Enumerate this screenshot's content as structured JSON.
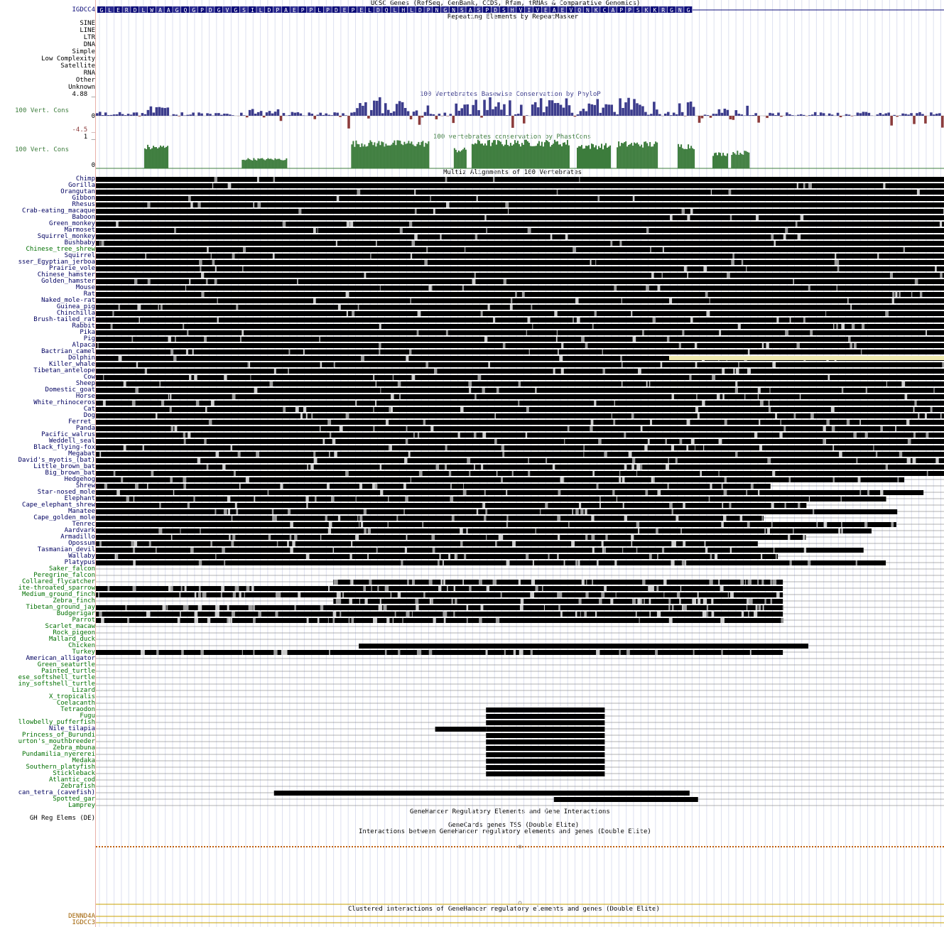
{
  "colors": {
    "gene": "#0c0c78",
    "gene_highlight": "#c000c0",
    "phylop_pos": "#3c3c8c",
    "phylop_neg": "#8c3c3c",
    "phylop_max": "#c000c0",
    "phastcons": "#3c7c3c",
    "align_black": "#000000",
    "align_gray": "#999999",
    "align_light": "#cccccc",
    "insertion_yellow": "#f0eab0",
    "mammal_label": "#000060",
    "bird_label": "#007000",
    "genehancer": "#c06010",
    "genehancer_line": "#c8a000",
    "gene_label": "#a06000"
  },
  "tracks": {
    "ucsc_genes": {
      "title": "UCSC Genes (RefSeq, GenBank, CCDS, Rfam, tRNAs & Comparative Genomics)",
      "label": "IGDCC4",
      "aa_sequence": [
        "G",
        "L",
        "E",
        "R",
        "D",
        "L",
        "W",
        "A",
        "A",
        "G",
        "Q",
        "G",
        "P",
        "D",
        "G",
        "V",
        "G",
        "S",
        "I",
        "L",
        "D",
        "P",
        "A",
        "E",
        "P",
        "P",
        "L",
        "P",
        "D",
        "E",
        "P",
        "E",
        "L",
        "D",
        "Q",
        "L",
        "H",
        "L",
        "D",
        "P",
        "N",
        "G",
        "N",
        "S",
        "A",
        "S",
        "P",
        "D",
        "S",
        "H",
        "V",
        "I",
        "V",
        "E",
        "A",
        "E",
        "V",
        "Q",
        "N",
        "K",
        "C",
        "A",
        "P",
        "P",
        "S",
        "K",
        "K",
        "R",
        "G",
        "N",
        "G"
      ]
    },
    "repeatmasker": {
      "title": "Repeating Elements by RepeatMasker",
      "classes": [
        "SINE",
        "LINE",
        "LTR",
        "DNA",
        "Simple",
        "Low Complexity",
        "Satellite",
        "RNA",
        "Other",
        "Unknown"
      ]
    },
    "phylop": {
      "title": "100 Vertebrates Basewise Conservation by PhyloP",
      "label": "100 Vert. Cons",
      "ymax_label": "4.88 _",
      "zero_label": "0",
      "ymin_label": "-4.5 _",
      "ymax": 4.88,
      "ymin": -4.5
    },
    "phastcons": {
      "title": "100 vertebrates conservation by PhastCons",
      "label": "100 Vert. Cons",
      "ymax_label": "1 _",
      "zero_label": "0",
      "blocks": [
        [
          0.057,
          0.084,
          0.8
        ],
        [
          0.172,
          0.224,
          0.35
        ],
        [
          0.301,
          0.393,
          0.95
        ],
        [
          0.422,
          0.437,
          0.7
        ],
        [
          0.443,
          0.557,
          0.97
        ],
        [
          0.567,
          0.607,
          0.85
        ],
        [
          0.614,
          0.662,
          0.92
        ],
        [
          0.686,
          0.705,
          0.85
        ],
        [
          0.727,
          0.744,
          0.55
        ],
        [
          0.749,
          0.77,
          0.6
        ]
      ]
    },
    "multiz": {
      "title": "Multiz Alignments of 100 Vertebrates",
      "species": [
        {
          "name": "Chimp",
          "group": "m"
        },
        {
          "name": "Gorilla",
          "group": "m"
        },
        {
          "name": "Orangutan",
          "group": "m"
        },
        {
          "name": "Gibbon",
          "group": "m"
        },
        {
          "name": "Rhesus",
          "group": "m"
        },
        {
          "name": "Crab-eating_macaque",
          "group": "m"
        },
        {
          "name": "Baboon",
          "group": "m"
        },
        {
          "name": "Green_monkey",
          "group": "m"
        },
        {
          "name": "Marmoset",
          "group": "m"
        },
        {
          "name": "Squirrel_monkey",
          "group": "m"
        },
        {
          "name": "Bushbaby",
          "group": "m"
        },
        {
          "name": "Chinese_tree_shrew",
          "group": "g"
        },
        {
          "name": "Squirrel",
          "group": "m"
        },
        {
          "name": "sser_Egyptian_jerboa",
          "group": "m"
        },
        {
          "name": "Prairie_vole",
          "group": "m"
        },
        {
          "name": "Chinese_hamster",
          "group": "m"
        },
        {
          "name": "Golden_hamster",
          "group": "m"
        },
        {
          "name": "Mouse",
          "group": "m"
        },
        {
          "name": "Rat",
          "group": "m"
        },
        {
          "name": "Naked_mole-rat",
          "group": "m"
        },
        {
          "name": "Guinea_pig",
          "group": "m"
        },
        {
          "name": "Chinchilla",
          "group": "m"
        },
        {
          "name": "Brush-tailed_rat",
          "group": "m"
        },
        {
          "name": "Rabbit",
          "group": "m"
        },
        {
          "name": "Pika",
          "group": "m"
        },
        {
          "name": "Pig",
          "group": "m"
        },
        {
          "name": "Alpaca",
          "group": "m"
        },
        {
          "name": "Bactrian_camel",
          "group": "m"
        },
        {
          "name": "Dolphin",
          "group": "m"
        },
        {
          "name": "Killer_whale",
          "group": "m"
        },
        {
          "name": "Tibetan_antelope",
          "group": "m"
        },
        {
          "name": "Cow",
          "group": "m"
        },
        {
          "name": "Sheep",
          "group": "m"
        },
        {
          "name": "Domestic_goat",
          "group": "m"
        },
        {
          "name": "Horse",
          "group": "m"
        },
        {
          "name": "White_rhinoceros",
          "group": "m"
        },
        {
          "name": "Cat",
          "group": "m"
        },
        {
          "name": "Dog",
          "group": "m"
        },
        {
          "name": "Ferret_",
          "group": "m"
        },
        {
          "name": "Panda",
          "group": "m"
        },
        {
          "name": "Pacific_walrus",
          "group": "m"
        },
        {
          "name": "Weddell_seal",
          "group": "m"
        },
        {
          "name": "Black_flying-fox",
          "group": "m"
        },
        {
          "name": "Megabat",
          "group": "m"
        },
        {
          "name": "David's_myotis_(bat)",
          "group": "m"
        },
        {
          "name": "Little_brown_bat",
          "group": "m"
        },
        {
          "name": "Big_brown_bat",
          "group": "m"
        },
        {
          "name": "Hedgehog",
          "group": "m"
        },
        {
          "name": "Shrew",
          "group": "m"
        },
        {
          "name": "Star-nosed_mole",
          "group": "m"
        },
        {
          "name": "Elephant",
          "group": "m"
        },
        {
          "name": "Cape_elephant_shrew",
          "group": "m"
        },
        {
          "name": "Manatee",
          "group": "m"
        },
        {
          "name": "Cape_golden_mole",
          "group": "m"
        },
        {
          "name": "Tenrec",
          "group": "m"
        },
        {
          "name": "Aardvark",
          "group": "m"
        },
        {
          "name": "Armadillo",
          "group": "m"
        },
        {
          "name": "Opossum",
          "group": "m"
        },
        {
          "name": "Tasmanian_devil",
          "group": "m"
        },
        {
          "name": "Wallaby",
          "group": "m"
        },
        {
          "name": "Platypus",
          "group": "m"
        },
        {
          "name": "Saker_falcon",
          "group": "g"
        },
        {
          "name": "Peregrine_falcon",
          "group": "g"
        },
        {
          "name": "Collared_flycatcher",
          "group": "g"
        },
        {
          "name": "ite-throated_sparrow",
          "group": "g"
        },
        {
          "name": "Medium_ground_finch",
          "group": "g"
        },
        {
          "name": "Zebra_finch",
          "group": "g"
        },
        {
          "name": "Tibetan_ground_jay",
          "group": "g"
        },
        {
          "name": "Budgerigar",
          "group": "g"
        },
        {
          "name": "Parrot",
          "group": "g"
        },
        {
          "name": "Scarlet_macaw",
          "group": "g"
        },
        {
          "name": "Rock_pigeon",
          "group": "g"
        },
        {
          "name": "Mallard_duck",
          "group": "g"
        },
        {
          "name": "Chicken",
          "group": "g"
        },
        {
          "name": "Turkey",
          "group": "g"
        },
        {
          "name": "American_alligator",
          "group": "m"
        },
        {
          "name": "Green_seaturtle",
          "group": "g"
        },
        {
          "name": "Painted_turtle",
          "group": "g"
        },
        {
          "name": "ese_softshell_turtle",
          "group": "g"
        },
        {
          "name": "iny_softshell_turtle",
          "group": "g"
        },
        {
          "name": "Lizard",
          "group": "g"
        },
        {
          "name": "X_tropicalis",
          "group": "g"
        },
        {
          "name": "Coelacanth",
          "group": "g"
        },
        {
          "name": "Tetraodon",
          "group": "g"
        },
        {
          "name": "Fugu",
          "group": "g"
        },
        {
          "name": "llowbelly_pufferfish",
          "group": "g"
        },
        {
          "name": "Nile_tilapia",
          "group": "m"
        },
        {
          "name": "Princess_of_Burundi",
          "group": "g"
        },
        {
          "name": "urton's_mouthbreeder",
          "group": "g"
        },
        {
          "name": "Zebra_mbuna",
          "group": "g"
        },
        {
          "name": "Pundamilia_nyererei",
          "group": "g"
        },
        {
          "name": "Medaka",
          "group": "g"
        },
        {
          "name": "Southern_platyfish",
          "group": "g"
        },
        {
          "name": "Stickleback",
          "group": "g"
        },
        {
          "name": "Atlantic_cod",
          "group": "g"
        },
        {
          "name": "Zebrafish",
          "group": "g"
        },
        {
          "name": "can_tetra_(cavefish)",
          "group": "m"
        },
        {
          "name": "Spotted_gar",
          "group": "g"
        },
        {
          "name": "Lamprey",
          "group": "g"
        }
      ]
    },
    "genehancer": {
      "title": "GeneHancer Regulatory Elements and Gene Interactions",
      "label": "GH Reg Elems (DE)",
      "tss_title": "GeneCards genes TSS (Double Elite)",
      "interactions_title": "Interactions between GeneHancer regulatory elements and genes (Double Elite)",
      "clustered_title": "Clustered interactions of GeneHancer regulatory elements and genes (Double Elite)",
      "genes": [
        "DENND4A",
        "IGDCC3"
      ]
    }
  }
}
